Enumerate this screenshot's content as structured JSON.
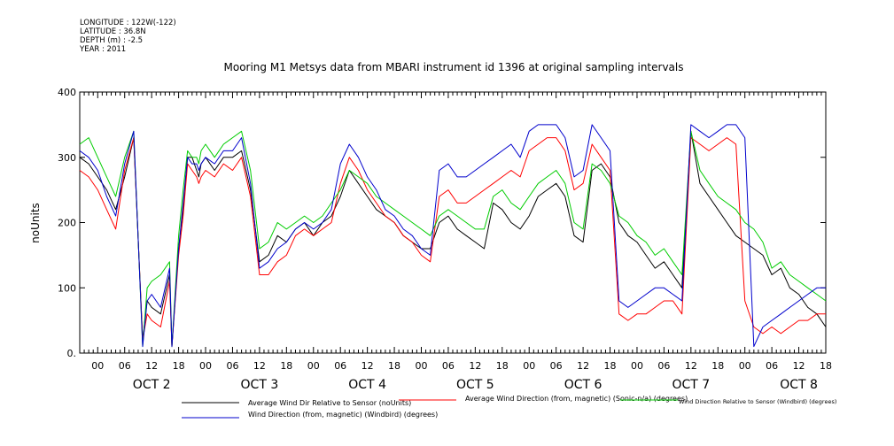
{
  "metadata": {
    "longitude": "LONGITUDE : 122W(-122)",
    "latitude": "LATITUDE : 36.8N",
    "depth": "DEPTH (m) : -2.5",
    "year": "YEAR : 2011"
  },
  "chart_data": {
    "type": "line",
    "title": "Mooring M1 Metsys data from MBARI instrument id 1396 at original sampling intervals",
    "ylabel": "noUnits",
    "ylim": [
      0,
      400
    ],
    "yticks": [
      "0.",
      "100",
      "200",
      "300",
      "400"
    ],
    "x_time_unit": "hours since Oct 1 2011 20:00",
    "xlim": [
      0,
      166
    ],
    "xtick_hours": [
      "00",
      "06",
      "12",
      "18",
      "00",
      "06",
      "12",
      "18",
      "00",
      "06",
      "12",
      "18",
      "00",
      "06",
      "12",
      "18",
      "00",
      "06",
      "12",
      "18",
      "00",
      "06",
      "12",
      "18",
      "00",
      "06",
      "12",
      "18"
    ],
    "day_labels": [
      "OCT  2",
      "OCT  3",
      "OCT  4",
      "OCT  5",
      "OCT  6",
      "OCT  7",
      "OCT  8"
    ],
    "series": [
      {
        "name": "Average Wind Dir Relative to Sensor (noUnits)",
        "color": "#000000",
        "x": [
          0,
          2,
          4,
          6,
          8,
          10,
          12,
          14,
          15,
          16,
          18,
          20,
          20.5,
          22,
          23,
          24,
          25,
          26,
          26.5,
          27,
          28,
          30,
          32,
          34,
          36,
          38,
          40,
          42,
          44,
          46,
          48,
          50,
          52,
          54,
          56,
          58,
          60,
          62,
          64,
          66,
          68,
          70,
          72,
          74,
          76,
          78,
          80,
          82,
          84,
          86,
          88,
          90,
          92,
          94,
          96,
          98,
          100,
          102,
          104,
          106,
          108,
          110,
          112,
          114,
          116,
          118,
          120,
          122,
          124,
          126,
          128,
          130,
          132,
          134,
          136,
          138,
          140,
          142,
          144,
          146,
          148,
          150,
          152,
          154,
          156,
          158,
          160,
          162,
          164,
          166
        ],
        "values": [
          300,
          290,
          270,
          250,
          220,
          270,
          330,
          20,
          80,
          70,
          60,
          120,
          10,
          160,
          220,
          300,
          300,
          280,
          270,
          290,
          300,
          280,
          300,
          300,
          310,
          250,
          140,
          150,
          180,
          170,
          190,
          200,
          180,
          200,
          210,
          240,
          280,
          260,
          240,
          220,
          210,
          200,
          180,
          170,
          160,
          160,
          200,
          210,
          190,
          180,
          170,
          160,
          230,
          220,
          200,
          190,
          210,
          240,
          250,
          260,
          240,
          180,
          170,
          280,
          290,
          270,
          200,
          180,
          170,
          150,
          130,
          140,
          120,
          100,
          340,
          260,
          240,
          220,
          200,
          180,
          170,
          160,
          150,
          120,
          130,
          100,
          90,
          70,
          60,
          40
        ]
      },
      {
        "name": "Average Wind Direction (from, magnetic) (Sonic-n/a) (degrees)",
        "color": "#ff0000",
        "x": [
          0,
          2,
          4,
          6,
          8,
          10,
          12,
          14,
          15,
          16,
          18,
          20,
          20.5,
          22,
          23,
          24,
          25,
          26,
          26.5,
          27,
          28,
          30,
          32,
          34,
          36,
          38,
          40,
          42,
          44,
          46,
          48,
          50,
          52,
          54,
          56,
          58,
          60,
          62,
          64,
          66,
          68,
          70,
          72,
          74,
          76,
          78,
          80,
          82,
          84,
          86,
          88,
          90,
          92,
          94,
          96,
          98,
          100,
          102,
          104,
          106,
          108,
          110,
          112,
          114,
          116,
          118,
          120,
          122,
          124,
          126,
          128,
          130,
          132,
          134,
          136,
          138,
          140,
          142,
          144,
          146,
          148,
          150,
          152,
          154,
          156,
          158,
          160,
          162,
          164,
          166
        ],
        "values": [
          280,
          270,
          250,
          220,
          190,
          280,
          330,
          20,
          60,
          50,
          40,
          110,
          10,
          150,
          210,
          290,
          280,
          270,
          260,
          270,
          280,
          270,
          290,
          280,
          300,
          240,
          120,
          120,
          140,
          150,
          180,
          190,
          180,
          190,
          200,
          260,
          300,
          280,
          250,
          230,
          210,
          200,
          180,
          170,
          150,
          140,
          240,
          250,
          230,
          230,
          240,
          250,
          260,
          270,
          280,
          270,
          310,
          320,
          330,
          330,
          310,
          250,
          260,
          320,
          300,
          280,
          60,
          50,
          60,
          60,
          70,
          80,
          80,
          60,
          330,
          320,
          310,
          320,
          330,
          320,
          80,
          40,
          30,
          40,
          30,
          40,
          50,
          50,
          60,
          60
        ]
      },
      {
        "name": "Wind Direction Relative to Sensor (Windbird) (degrees)",
        "color": "#00cc00",
        "x": [
          0,
          2,
          4,
          6,
          8,
          10,
          12,
          14,
          15,
          16,
          18,
          20,
          20.5,
          22,
          23,
          24,
          25,
          26,
          26.5,
          27,
          28,
          30,
          32,
          34,
          36,
          38,
          40,
          42,
          44,
          46,
          48,
          50,
          52,
          54,
          56,
          58,
          60,
          62,
          64,
          66,
          68,
          70,
          72,
          74,
          76,
          78,
          80,
          82,
          84,
          86,
          88,
          90,
          92,
          94,
          96,
          98,
          100,
          102,
          104,
          106,
          108,
          110,
          112,
          114,
          116,
          118,
          120,
          122,
          124,
          126,
          128,
          130,
          132,
          134,
          136,
          138,
          140,
          142,
          144,
          146,
          148,
          150,
          152,
          154,
          156,
          158,
          160,
          162,
          164,
          166
        ],
        "values": [
          320,
          330,
          300,
          270,
          240,
          300,
          340,
          10,
          100,
          110,
          120,
          140,
          10,
          180,
          250,
          310,
          300,
          300,
          290,
          310,
          320,
          300,
          320,
          330,
          340,
          280,
          160,
          170,
          200,
          190,
          200,
          210,
          200,
          210,
          230,
          250,
          280,
          270,
          260,
          240,
          230,
          220,
          210,
          200,
          190,
          180,
          210,
          220,
          210,
          200,
          190,
          190,
          240,
          250,
          230,
          220,
          240,
          260,
          270,
          280,
          260,
          200,
          190,
          290,
          280,
          260,
          210,
          200,
          180,
          170,
          150,
          160,
          140,
          120,
          340,
          280,
          260,
          240,
          230,
          220,
          200,
          190,
          170,
          130,
          140,
          120,
          110,
          100,
          90,
          80
        ]
      },
      {
        "name": "Wind Direction (from, magnetic) (Windbird) (degrees)",
        "color": "#0000cc",
        "x": [
          0,
          2,
          4,
          6,
          8,
          10,
          12,
          14,
          15,
          16,
          18,
          20,
          20.5,
          22,
          23,
          24,
          25,
          26,
          26.5,
          27,
          28,
          30,
          32,
          34,
          36,
          38,
          40,
          42,
          44,
          46,
          48,
          50,
          52,
          54,
          56,
          58,
          60,
          62,
          64,
          66,
          68,
          70,
          72,
          74,
          76,
          78,
          80,
          82,
          84,
          86,
          88,
          90,
          92,
          94,
          96,
          98,
          100,
          102,
          104,
          106,
          108,
          110,
          112,
          114,
          116,
          118,
          120,
          122,
          124,
          126,
          128,
          130,
          132,
          134,
          136,
          138,
          140,
          142,
          144,
          146,
          148,
          150,
          152,
          154,
          156,
          158,
          160,
          162,
          164,
          166
        ],
        "values": [
          310,
          300,
          280,
          240,
          210,
          290,
          340,
          10,
          80,
          90,
          70,
          130,
          10,
          160,
          230,
          300,
          290,
          290,
          280,
          290,
          300,
          290,
          310,
          310,
          330,
          260,
          130,
          140,
          160,
          170,
          190,
          200,
          190,
          200,
          220,
          290,
          320,
          300,
          270,
          250,
          220,
          210,
          190,
          180,
          160,
          150,
          280,
          290,
          270,
          270,
          280,
          290,
          300,
          310,
          320,
          300,
          340,
          350,
          350,
          350,
          330,
          270,
          280,
          350,
          330,
          310,
          80,
          70,
          80,
          90,
          100,
          100,
          90,
          80,
          350,
          340,
          330,
          340,
          350,
          350,
          330,
          10,
          40,
          50,
          60,
          70,
          80,
          90,
          100,
          100
        ]
      }
    ],
    "grid": false,
    "legend_placement": "bottom"
  }
}
